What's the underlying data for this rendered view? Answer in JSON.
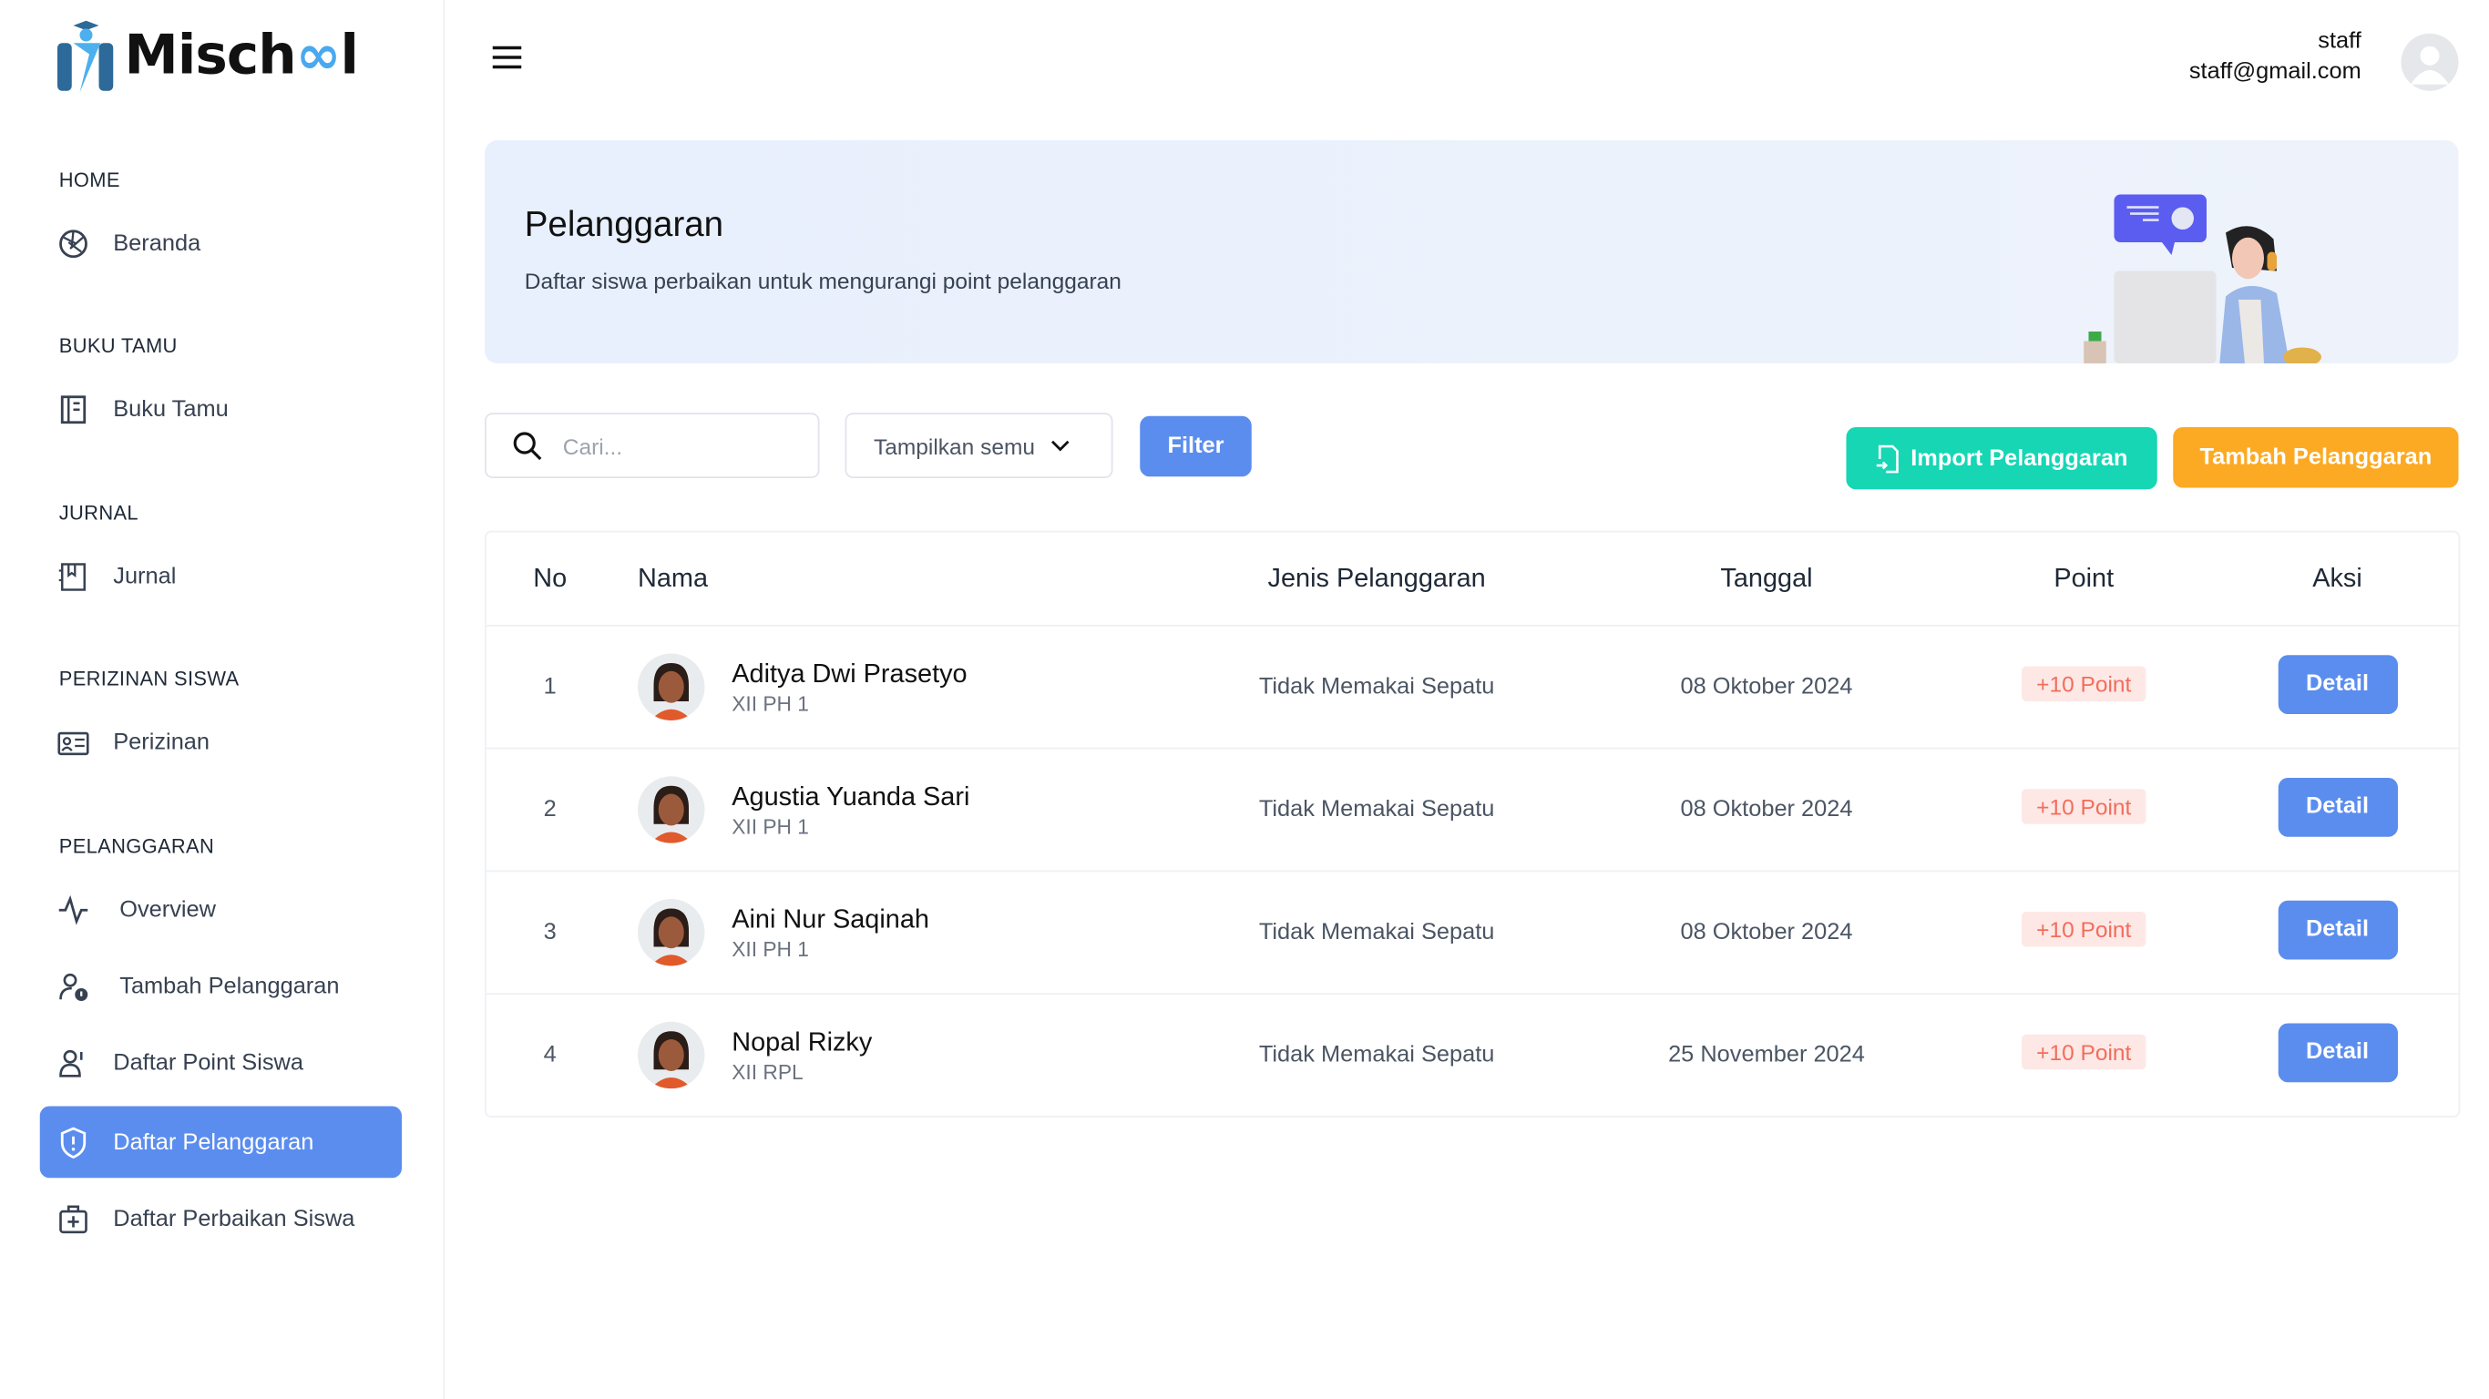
{
  "brand": {
    "name_prefix": "Misch",
    "name_infinity": "∞",
    "name_suffix": "l"
  },
  "sidebar": {
    "sections": [
      {
        "title": "HOME",
        "items": [
          {
            "label": "Beranda",
            "icon": "dashboard-icon"
          }
        ]
      },
      {
        "title": "BUKU TAMU",
        "items": [
          {
            "label": "Buku Tamu",
            "icon": "book-icon"
          }
        ]
      },
      {
        "title": "JURNAL",
        "items": [
          {
            "label": "Jurnal",
            "icon": "journal-icon"
          }
        ]
      },
      {
        "title": "PERIZINAN SISWA",
        "items": [
          {
            "label": "Perizinan",
            "icon": "id-card-icon"
          }
        ]
      },
      {
        "title": "PELANGGARAN",
        "items": [
          {
            "label": "Overview",
            "icon": "activity-icon"
          },
          {
            "label": "Tambah Pelanggaran",
            "icon": "user-alert-icon"
          },
          {
            "label": "Daftar Point Siswa",
            "icon": "user-list-icon"
          },
          {
            "label": "Daftar Pelanggaran",
            "icon": "shield-icon",
            "active": true
          },
          {
            "label": "Daftar Perbaikan Siswa",
            "icon": "first-aid-icon"
          }
        ]
      }
    ]
  },
  "header": {
    "user_name": "staff",
    "user_email": "staff@gmail.com"
  },
  "banner": {
    "title": "Pelanggaran",
    "subtitle": "Daftar siswa perbaikan untuk mengurangi point pelanggaran"
  },
  "toolbar": {
    "search_placeholder": "Cari...",
    "filter_select": "Tampilkan semu",
    "filter_label": "Filter",
    "import_label": "Import Pelanggaran",
    "add_label": "Tambah Pelanggaran"
  },
  "colors": {
    "primary": "#5b8def",
    "import": "#16d6b4",
    "add": "#fcaa23",
    "badge_text": "#f26d5b",
    "badge_bg": "#fde8e6"
  },
  "table": {
    "headers": [
      "No",
      "Nama",
      "Jenis Pelanggaran",
      "Tanggal",
      "Point",
      "Aksi"
    ],
    "rows": [
      {
        "no": "1",
        "name": "Aditya Dwi Prasetyo",
        "class": "XII PH 1",
        "type": "Tidak Memakai Sepatu",
        "date": "08 Oktober 2024",
        "point": "+10 Point",
        "action": "Detail"
      },
      {
        "no": "2",
        "name": "Agustia Yuanda Sari",
        "class": "XII PH 1",
        "type": "Tidak Memakai Sepatu",
        "date": "08 Oktober 2024",
        "point": "+10 Point",
        "action": "Detail"
      },
      {
        "no": "3",
        "name": "Aini Nur Saqinah",
        "class": "XII PH 1",
        "type": "Tidak Memakai Sepatu",
        "date": "08 Oktober 2024",
        "point": "+10 Point",
        "action": "Detail"
      },
      {
        "no": "4",
        "name": "Nopal Rizky",
        "class": "XII RPL",
        "type": "Tidak Memakai Sepatu",
        "date": "25 November 2024",
        "point": "+10 Point",
        "action": "Detail"
      }
    ]
  }
}
